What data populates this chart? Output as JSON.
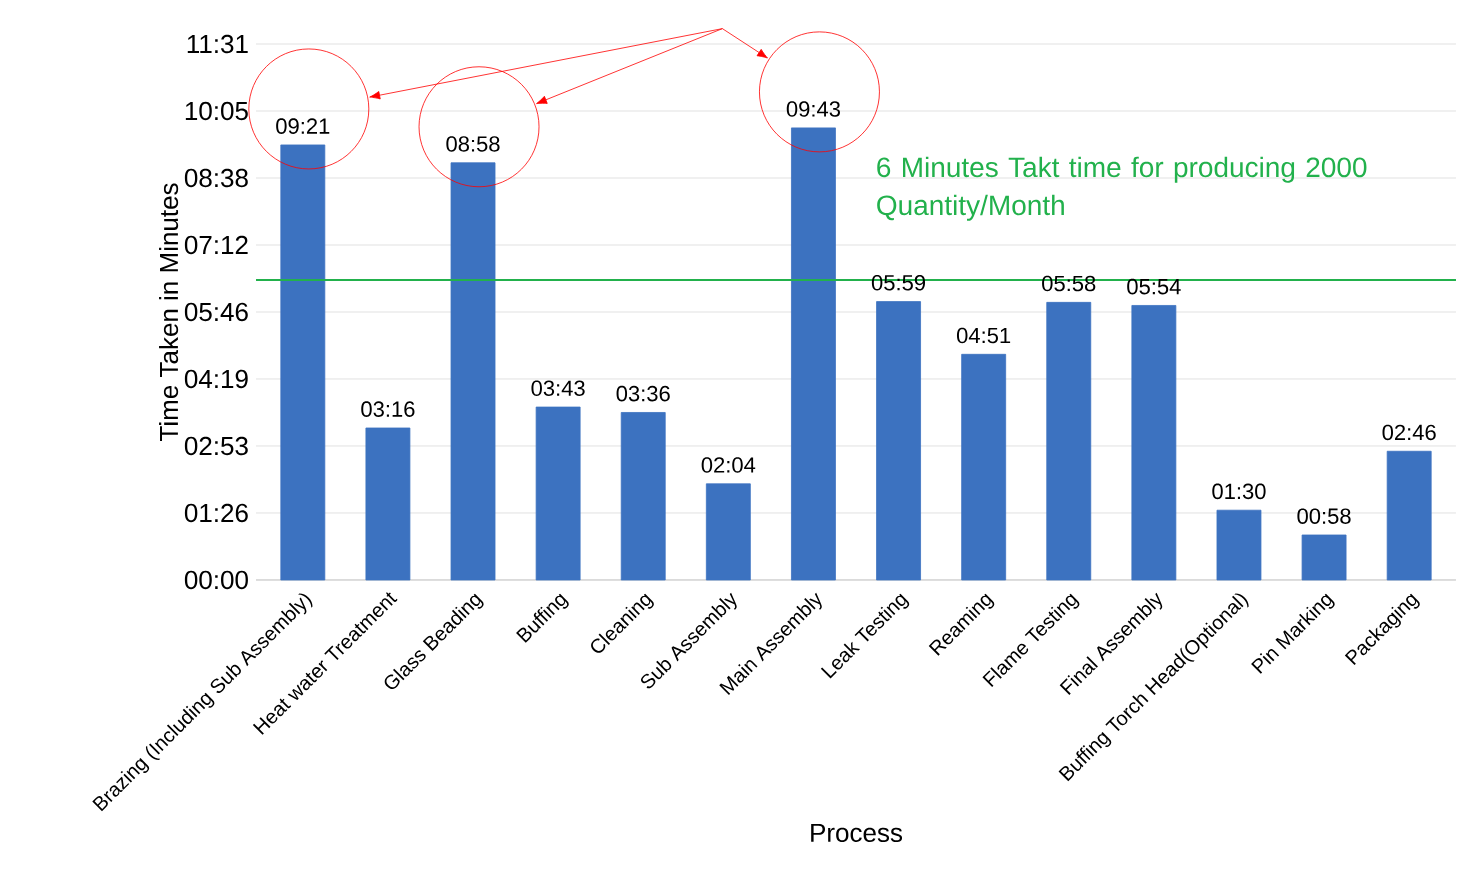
{
  "chart_data": {
    "type": "bar",
    "xlabel": "Process",
    "ylabel": "Time Taken in Minutes",
    "categories": [
      "Brazing (Including Sub Assembly)",
      "Heat water Treatment",
      "Glass Beading",
      "Buffing",
      "Cleaning",
      "Sub Assembly",
      "Main Assembly",
      "Leak Testing",
      "Reaming",
      "Flame Testing",
      "Final Assembly",
      "Buffing Torch Head(Optional)",
      "Pin Marking",
      "Packaging"
    ],
    "values": [
      9.35,
      3.2667,
      8.9667,
      3.7167,
      3.6,
      2.0667,
      9.7167,
      5.9833,
      4.85,
      5.9667,
      5.9,
      1.5,
      0.9667,
      2.7667
    ],
    "value_labels": [
      "09:21",
      "03:16",
      "08:58",
      "03:43",
      "03:36",
      "02:04",
      "09:43",
      "05:59",
      "04:51",
      "05:58",
      "05:54",
      "01:30",
      "00:58",
      "02:46"
    ],
    "color": "#3c72c0",
    "ylim": [
      0,
      11.52
    ],
    "yticks": [
      {
        "value": 0,
        "label": "00:00"
      },
      {
        "value": 1.44,
        "label": "01:26"
      },
      {
        "value": 2.88,
        "label": "02:53"
      },
      {
        "value": 4.32,
        "label": "04:19"
      },
      {
        "value": 5.76,
        "label": "05:46"
      },
      {
        "value": 7.2,
        "label": "07:12"
      },
      {
        "value": 8.64,
        "label": "08:38"
      },
      {
        "value": 10.08,
        "label": "10:05"
      },
      {
        "value": 11.52,
        "label": "11:31"
      }
    ],
    "grid": "y",
    "ref_lines": [
      {
        "axis": "y",
        "value": 6.45,
        "color": "#22b14c"
      }
    ],
    "annotations": [
      "6 Minutes Takt time for producing 2000 Quantity/Month"
    ]
  }
}
